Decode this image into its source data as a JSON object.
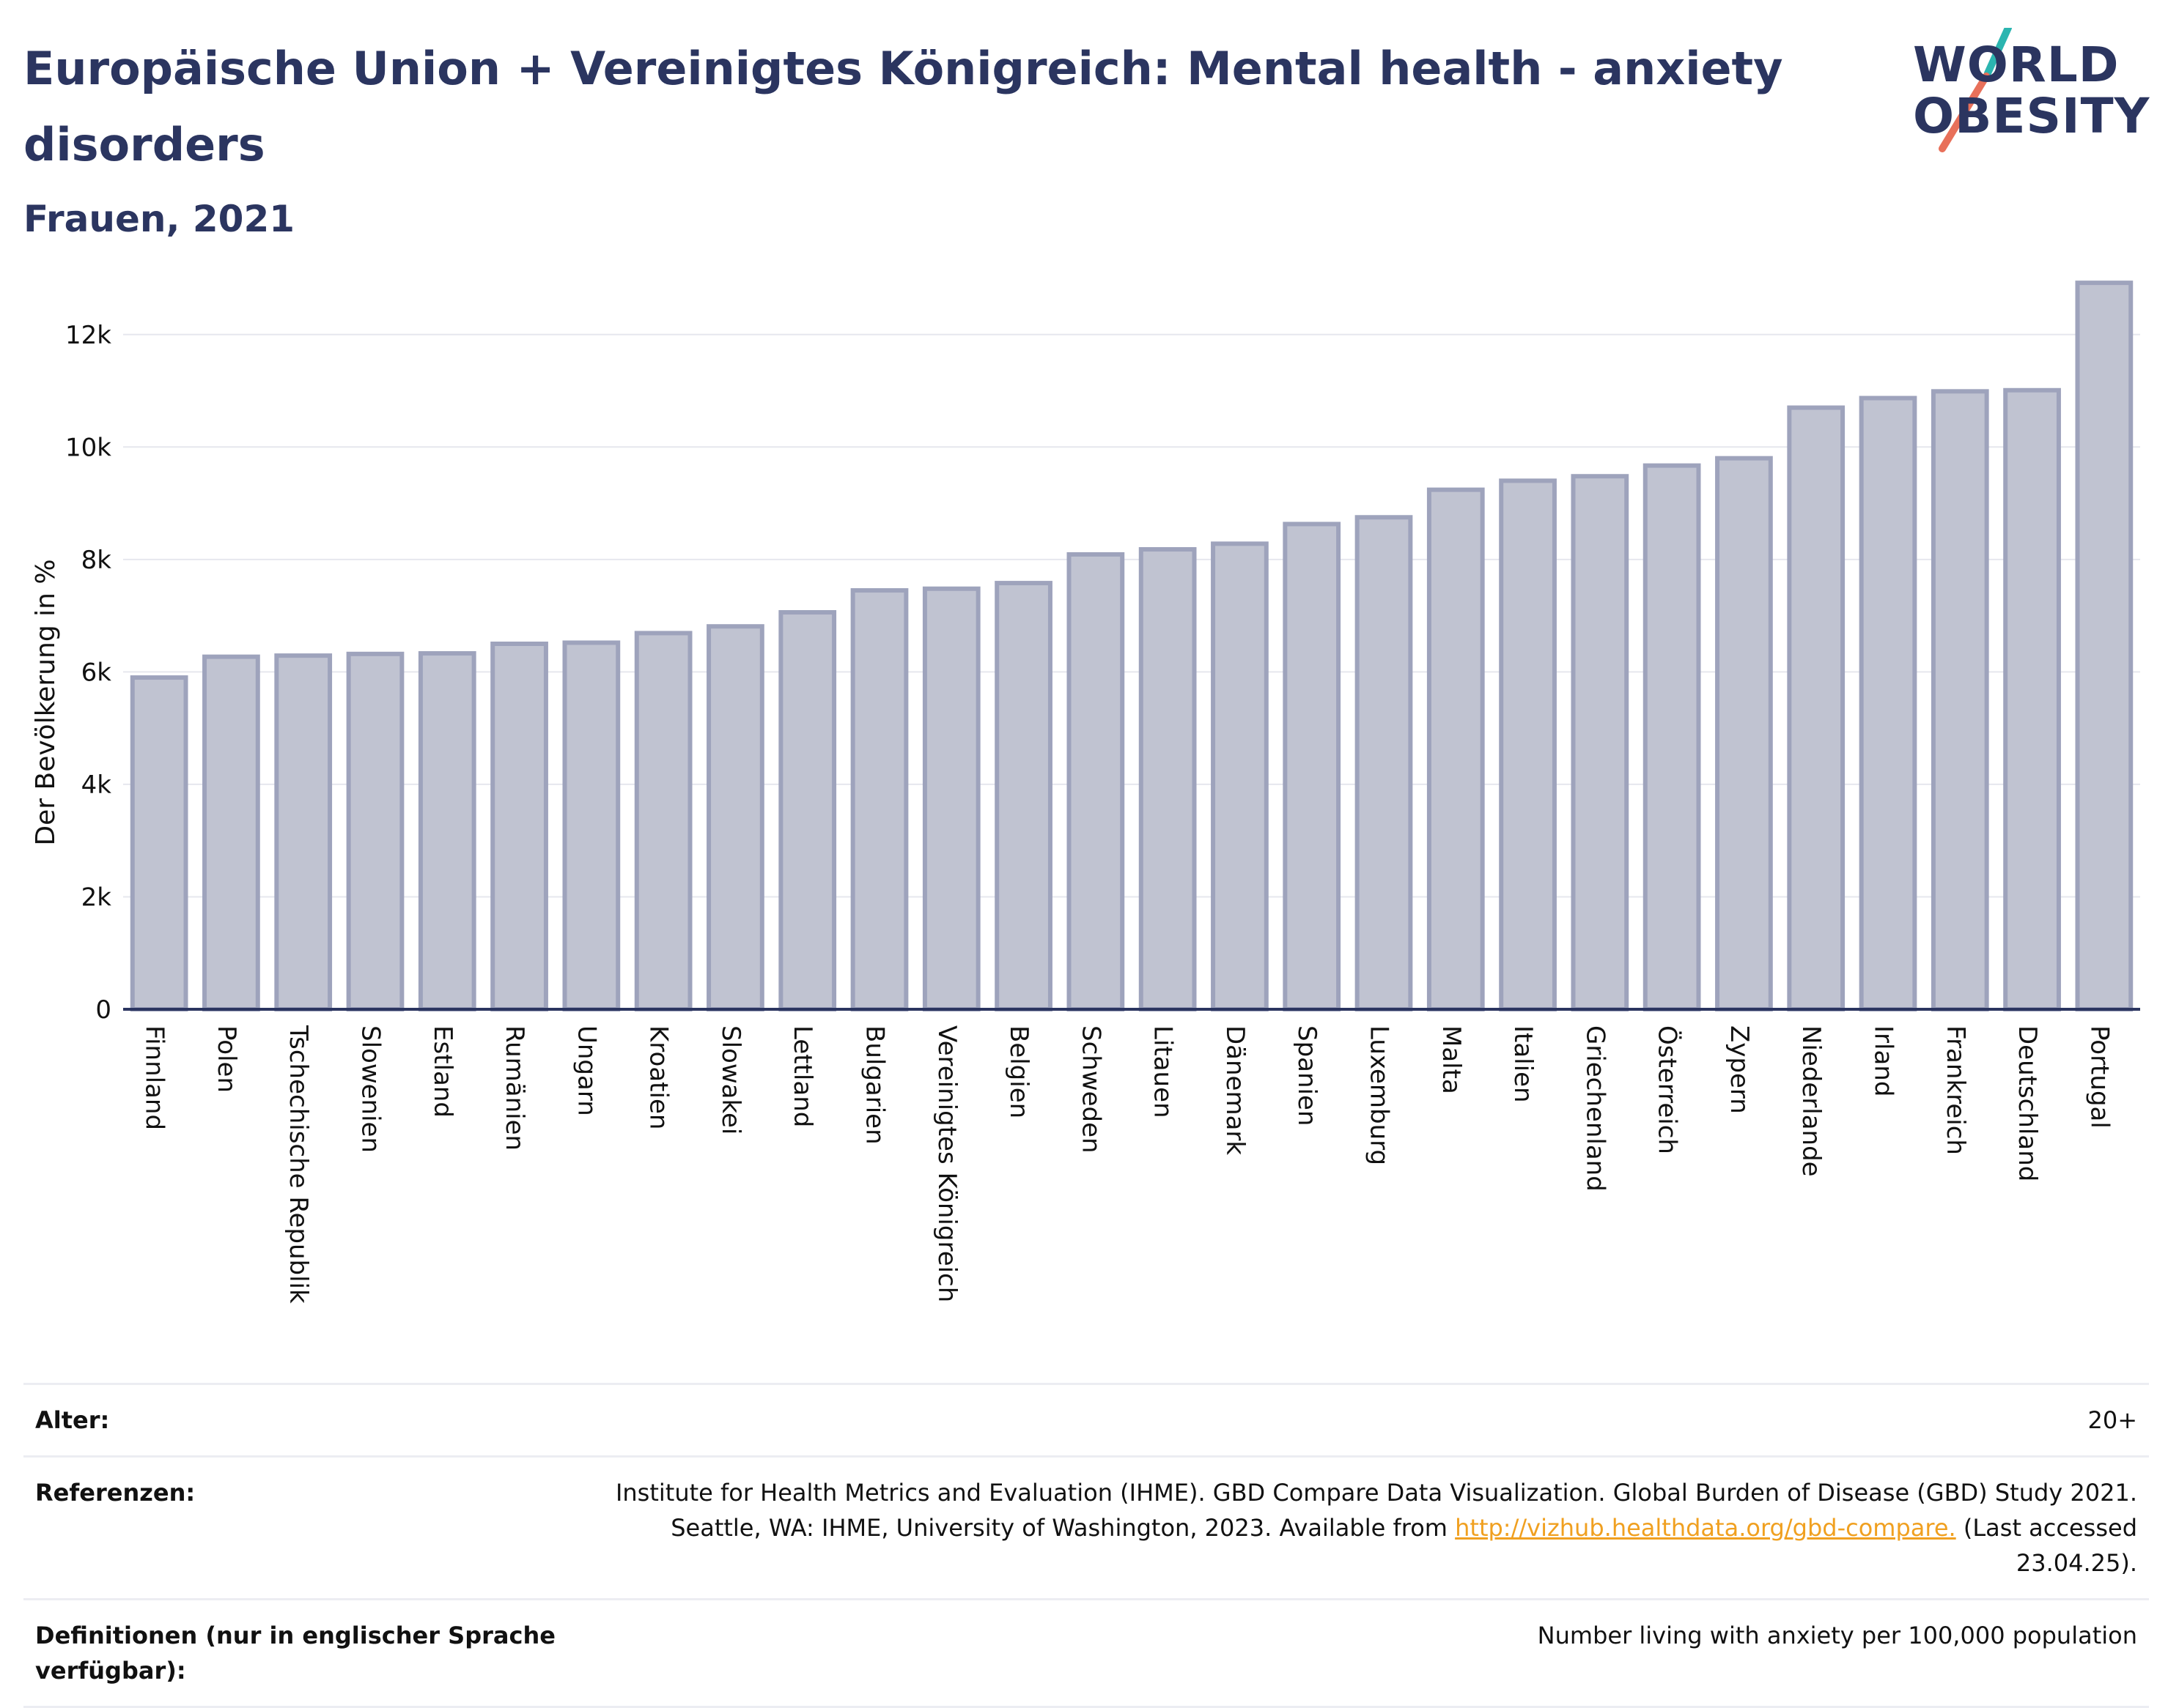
{
  "header": {
    "title": "Europäische Union + Vereinigtes Königreich: Mental health - anxiety disorders",
    "subtitle": "Frauen, 2021"
  },
  "logo": {
    "line1": "WORLD",
    "line2": "OBESITY",
    "colors": {
      "text": "#2b3560",
      "slash_top": "#2bb5b0",
      "slash_bottom": "#e8705a"
    }
  },
  "chart_data": {
    "type": "bar",
    "ylabel": "Der Bevölkerung in %",
    "ylim": [
      0,
      13000
    ],
    "yticks": [
      0,
      2000,
      4000,
      6000,
      8000,
      10000,
      12000
    ],
    "ytick_labels": [
      "0",
      "2k",
      "4k",
      "6k",
      "8k",
      "10k",
      "12k"
    ],
    "grid": true,
    "bar_color": "#c0c3d1",
    "bar_border_color": "#9ea3bc",
    "categories": [
      "Finnland",
      "Polen",
      "Tschechische Republik",
      "Slowenien",
      "Estland",
      "Rumänien",
      "Ungarn",
      "Kroatien",
      "Slowakei",
      "Lettland",
      "Bulgarien",
      "Vereinigtes Königreich",
      "Belgien",
      "Schweden",
      "Litauen",
      "Dänemark",
      "Spanien",
      "Luxemburg",
      "Malta",
      "Italien",
      "Griechenland",
      "Österreich",
      "Zypern",
      "Niederlande",
      "Irland",
      "Frankreich",
      "Deutschland",
      "Portugal"
    ],
    "values": [
      5900,
      6270,
      6290,
      6320,
      6330,
      6500,
      6520,
      6690,
      6810,
      7060,
      7450,
      7480,
      7580,
      8090,
      8180,
      8280,
      8630,
      8750,
      9240,
      9400,
      9480,
      9670,
      9800,
      10700,
      10870,
      10990,
      11010,
      12920
    ]
  },
  "footer": {
    "rows": [
      {
        "label": "Alter:",
        "value": "20+"
      },
      {
        "label": "Referenzen:",
        "value_pre": "Institute for Health Metrics and Evaluation (IHME). GBD Compare Data Visualization. Global Burden of Disease (GBD) Study 2021. Seattle, WA: IHME, University of Washington, 2023. Available from ",
        "link": "http://vizhub.healthdata.org/gbd-compare.",
        "value_post": " (Last accessed 23.04.25)."
      },
      {
        "label": "Definitionen (nur in englischer Sprache verfügbar):",
        "value": "Number living with anxiety per 100,000 population"
      }
    ]
  }
}
